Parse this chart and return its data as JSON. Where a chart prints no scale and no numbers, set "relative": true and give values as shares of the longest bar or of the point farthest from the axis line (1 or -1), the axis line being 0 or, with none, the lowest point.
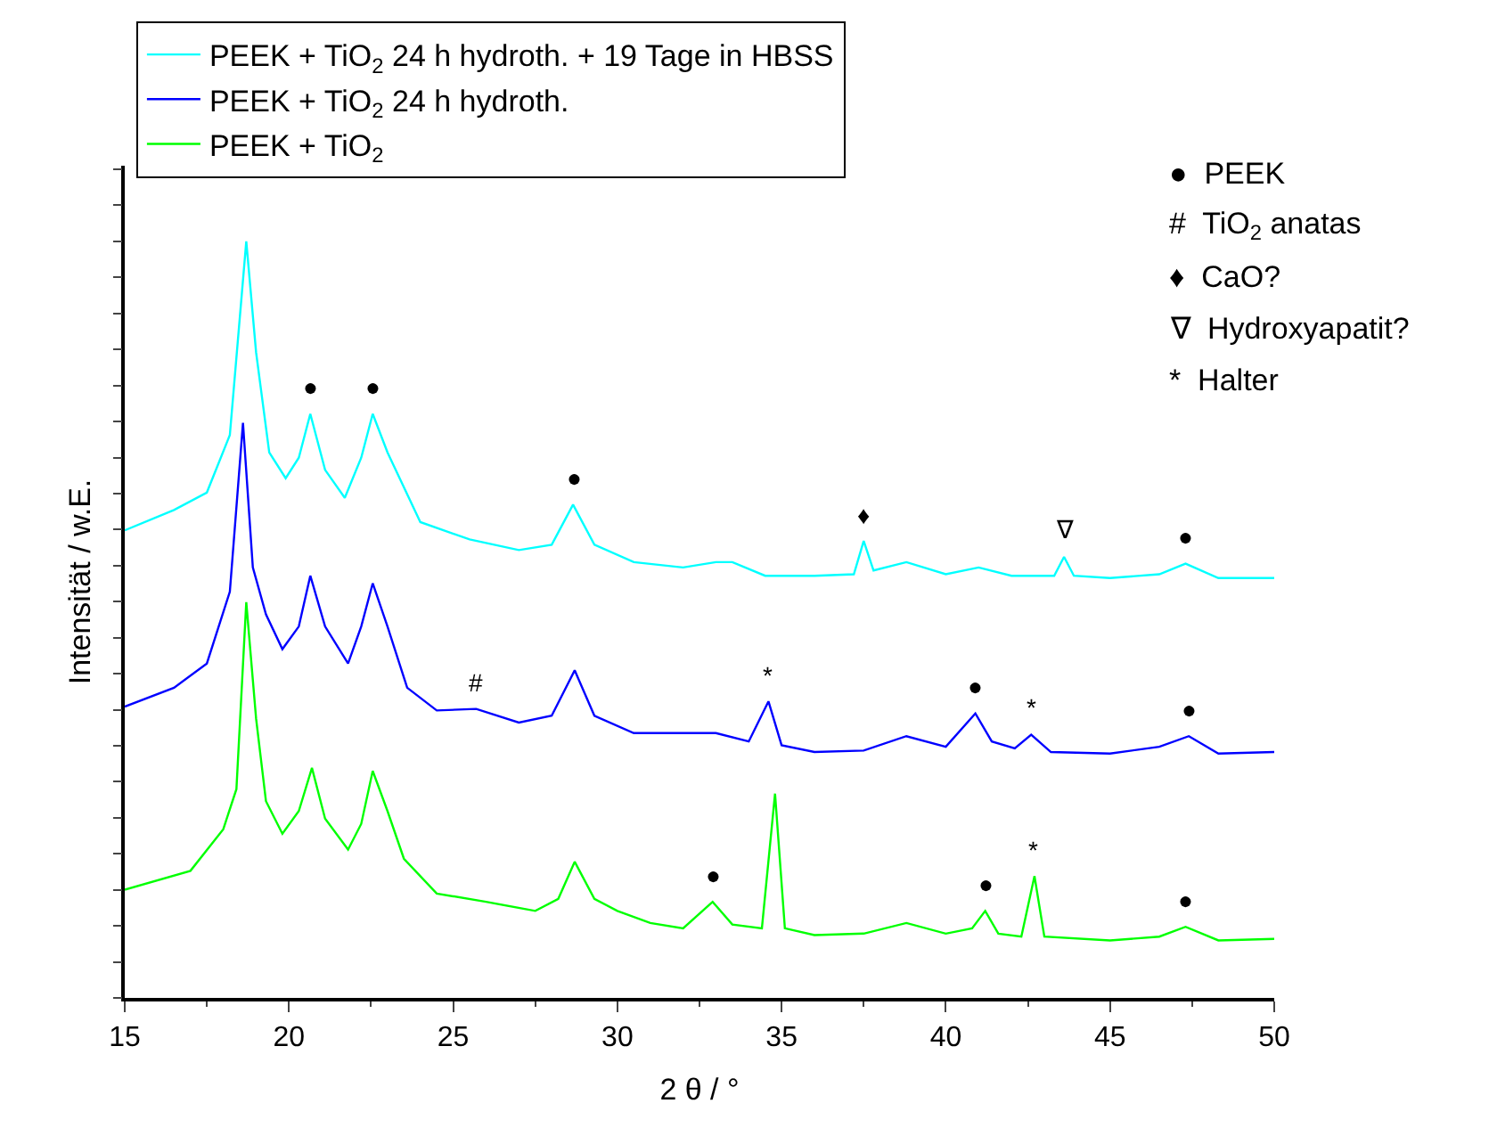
{
  "chart_data": {
    "type": "line",
    "relative": true,
    "xlabel": "2 θ / °",
    "ylabel": "Intensität / w.E.",
    "xlim": [
      15,
      50
    ],
    "xticks": [
      15,
      20,
      25,
      30,
      35,
      40,
      45,
      50
    ],
    "legend": "top left",
    "marker": "none",
    "line_style": "solid",
    "series": [
      {
        "name": "PEEK + TiO$_{2}$ 24 h hydroth. + 19 Tage in HBSS",
        "color": "#00ffff",
        "x": [
          15,
          16.5,
          17.5,
          18.2,
          18.7,
          19.0,
          19.4,
          19.9,
          20.3,
          20.65,
          21.1,
          21.7,
          22.2,
          22.55,
          23,
          24,
          25.5,
          27,
          28,
          28.65,
          29.3,
          30.5,
          32,
          33,
          33.5,
          34.5,
          36,
          37.2,
          37.5,
          37.8,
          38.8,
          40,
          41,
          42,
          43.3,
          43.6,
          43.9,
          45,
          46.5,
          47.3,
          48.3,
          50
        ],
        "values": [
          0.618,
          0.645,
          0.668,
          0.744,
          1.0,
          0.853,
          0.721,
          0.687,
          0.714,
          0.772,
          0.698,
          0.661,
          0.714,
          0.772,
          0.721,
          0.629,
          0.606,
          0.592,
          0.599,
          0.652,
          0.599,
          0.576,
          0.569,
          0.576,
          0.576,
          0.558,
          0.558,
          0.56,
          0.604,
          0.565,
          0.576,
          0.56,
          0.569,
          0.558,
          0.558,
          0.583,
          0.558,
          0.555,
          0.56,
          0.574,
          0.555,
          0.555
        ]
      },
      {
        "name": "PEEK + TiO$_{2}$ 24 h hydroth.",
        "color": "#0000ff",
        "x": [
          15,
          16.5,
          17.5,
          18.2,
          18.6,
          18.9,
          19.3,
          19.8,
          20.3,
          20.65,
          21.1,
          21.8,
          22.2,
          22.55,
          23,
          23.6,
          24.5,
          25.7,
          27,
          28,
          28.7,
          29.3,
          30.5,
          32,
          33,
          34,
          34.6,
          35,
          36,
          37.5,
          38.8,
          40,
          40.9,
          41.4,
          42.1,
          42.6,
          43.2,
          45,
          46.5,
          47.4,
          48.3,
          50
        ],
        "values": [
          0.385,
          0.41,
          0.442,
          0.537,
          0.76,
          0.569,
          0.507,
          0.461,
          0.491,
          0.558,
          0.491,
          0.442,
          0.491,
          0.548,
          0.491,
          0.41,
          0.38,
          0.382,
          0.364,
          0.373,
          0.433,
          0.373,
          0.35,
          0.35,
          0.35,
          0.339,
          0.392,
          0.334,
          0.325,
          0.327,
          0.346,
          0.332,
          0.376,
          0.339,
          0.33,
          0.348,
          0.325,
          0.323,
          0.332,
          0.346,
          0.323,
          0.325
        ]
      },
      {
        "name": "PEEK + TiO$_{2}$",
        "color": "#00ff00",
        "x": [
          15,
          17,
          18,
          18.4,
          18.7,
          19.0,
          19.3,
          19.8,
          20.3,
          20.7,
          21.1,
          21.8,
          22.2,
          22.55,
          23,
          23.5,
          24.5,
          26,
          27.5,
          28.2,
          28.7,
          29.3,
          30,
          31,
          32,
          32.9,
          33.5,
          34.4,
          34.8,
          35.1,
          36,
          37.5,
          38.8,
          40,
          40.8,
          41.2,
          41.6,
          42.3,
          42.7,
          43,
          45,
          46.5,
          47.3,
          48.3,
          50
        ],
        "values": [
          0.143,
          0.168,
          0.223,
          0.276,
          0.523,
          0.369,
          0.26,
          0.217,
          0.247,
          0.304,
          0.237,
          0.196,
          0.23,
          0.3,
          0.247,
          0.184,
          0.138,
          0.127,
          0.115,
          0.131,
          0.18,
          0.131,
          0.115,
          0.099,
          0.092,
          0.127,
          0.097,
          0.092,
          0.27,
          0.092,
          0.083,
          0.085,
          0.099,
          0.085,
          0.092,
          0.115,
          0.085,
          0.081,
          0.161,
          0.081,
          0.076,
          0.081,
          0.094,
          0.076,
          0.078
        ]
      }
    ],
    "annotations": [
      {
        "text": "●",
        "x": 20.65,
        "y": 0.772
      },
      {
        "text": "●",
        "x": 22.55,
        "y": 0.772
      },
      {
        "text": "●",
        "x": 28.65,
        "y": 0.652
      },
      {
        "text": "♦",
        "x": 37.5,
        "y": 0.604
      },
      {
        "text": "∇",
        "x": 43.6,
        "y": 0.583
      },
      {
        "text": "●",
        "x": 47.3,
        "y": 0.574
      },
      {
        "text": "#",
        "x": 25.7,
        "y": 0.382
      },
      {
        "text": "*",
        "x": 34.6,
        "y": 0.392
      },
      {
        "text": "●",
        "x": 40.9,
        "y": 0.376
      },
      {
        "text": "*",
        "x": 42.6,
        "y": 0.348
      },
      {
        "text": "●",
        "x": 47.4,
        "y": 0.346
      },
      {
        "text": "●",
        "x": 32.9,
        "y": 0.127
      },
      {
        "text": "●",
        "x": 41.2,
        "y": 0.115
      },
      {
        "text": "*",
        "x": 42.7,
        "y": 0.161
      },
      {
        "text": "●",
        "x": 47.3,
        "y": 0.094
      },
      "●  PEEK",
      "#  TiO$_{2}$ anatas",
      "♦  CaO?",
      "∇  Hydroxyapatit?",
      "*  Halter"
    ]
  }
}
